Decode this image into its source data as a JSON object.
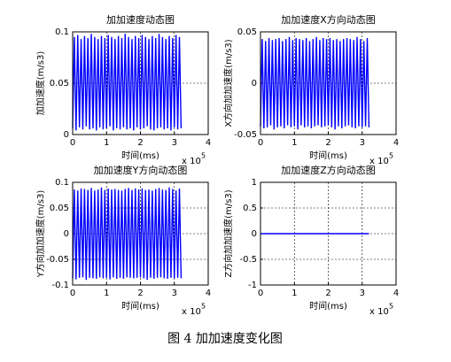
{
  "caption": "图 4 加加速度变化图",
  "chart_data": [
    {
      "type": "line",
      "title": "加加速度动态图",
      "xlabel": "时间(ms)",
      "ylabel": "加加速度(m/s3)",
      "x_scale_label": "x 10",
      "x_scale_exponent": "5",
      "xlim": [
        0,
        400000
      ],
      "xticks": [
        0,
        {
          "value": 100000,
          "label": "1"
        },
        {
          "value": 200000,
          "label": "2"
        },
        {
          "value": 300000,
          "label": "3"
        },
        {
          "value": 400000,
          "label": "4"
        }
      ],
      "ylim": [
        0,
        0.1
      ],
      "yticks": [
        0,
        0.05,
        0.1
      ],
      "grid": true,
      "x": [
        0,
        5000,
        10000,
        15000,
        20000,
        25000,
        30000,
        35000,
        40000,
        45000,
        50000,
        55000,
        60000,
        65000,
        70000,
        75000,
        80000,
        85000,
        90000,
        95000,
        100000,
        105000,
        110000,
        115000,
        120000,
        125000,
        130000,
        135000,
        140000,
        145000,
        150000,
        155000,
        160000,
        165000,
        170000,
        175000,
        180000,
        185000,
        190000,
        195000,
        200000,
        205000,
        210000,
        215000,
        220000,
        225000,
        230000,
        235000,
        240000,
        245000,
        250000,
        255000,
        260000,
        265000,
        270000,
        275000,
        280000,
        285000,
        290000,
        295000,
        300000,
        305000,
        310000,
        315000,
        320000
      ],
      "series": [
        {
          "color": "#0000ff",
          "values": [
            0.006,
            0.095,
            0.004,
            0.097,
            0.007,
            0.093,
            0.005,
            0.096,
            0.008,
            0.094,
            0.005,
            0.098,
            0.006,
            0.095,
            0.004,
            0.093,
            0.007,
            0.096,
            0.005,
            0.094,
            0.006,
            0.097,
            0.008,
            0.095,
            0.004,
            0.093,
            0.006,
            0.096,
            0.005,
            0.094,
            0.007,
            0.098,
            0.005,
            0.095,
            0.006,
            0.093,
            0.004,
            0.096,
            0.007,
            0.094,
            0.005,
            0.097,
            0.006,
            0.095,
            0.008,
            0.093,
            0.005,
            0.096,
            0.004,
            0.094,
            0.006,
            0.098,
            0.007,
            0.095,
            0.005,
            0.093,
            0.006,
            0.096,
            0.004,
            0.094,
            0.007,
            0.097,
            0.005,
            0.095,
            0.006
          ]
        }
      ]
    },
    {
      "type": "line",
      "title": "加加速度X方向动态图",
      "xlabel": "时间(ms)",
      "ylabel": "X方向加加速度(m/s3)",
      "x_scale_label": "x 10",
      "x_scale_exponent": "5",
      "xlim": [
        0,
        400000
      ],
      "xticks": [
        0,
        {
          "value": 100000,
          "label": "1"
        },
        {
          "value": 200000,
          "label": "2"
        },
        {
          "value": 300000,
          "label": "3"
        },
        {
          "value": 400000,
          "label": "4"
        }
      ],
      "ylim": [
        -0.05,
        0.05
      ],
      "yticks": [
        -0.05,
        0,
        0.05
      ],
      "grid": true,
      "x": [
        0,
        5000,
        10000,
        15000,
        20000,
        25000,
        30000,
        35000,
        40000,
        45000,
        50000,
        55000,
        60000,
        65000,
        70000,
        75000,
        80000,
        85000,
        90000,
        95000,
        100000,
        105000,
        110000,
        115000,
        120000,
        125000,
        130000,
        135000,
        140000,
        145000,
        150000,
        155000,
        160000,
        165000,
        170000,
        175000,
        180000,
        185000,
        190000,
        195000,
        200000,
        205000,
        210000,
        215000,
        220000,
        225000,
        230000,
        235000,
        240000,
        245000,
        250000,
        255000,
        260000,
        265000,
        270000,
        275000,
        280000,
        285000,
        290000,
        295000,
        300000,
        305000,
        310000,
        315000,
        320000
      ],
      "series": [
        {
          "color": "#0000ff",
          "values": [
            -0.042,
            0.043,
            -0.044,
            0.041,
            -0.043,
            0.044,
            -0.041,
            0.042,
            -0.045,
            0.043,
            -0.043,
            0.044,
            -0.042,
            0.041,
            -0.044,
            0.043,
            -0.041,
            0.045,
            -0.043,
            0.042,
            -0.042,
            0.044,
            -0.045,
            0.043,
            -0.041,
            0.042,
            -0.043,
            0.044,
            -0.042,
            0.041,
            -0.044,
            0.043,
            -0.042,
            0.045,
            -0.041,
            0.042,
            -0.043,
            0.044,
            -0.042,
            0.043,
            -0.041,
            0.044,
            -0.043,
            0.042,
            -0.045,
            0.043,
            -0.042,
            0.041,
            -0.044,
            0.043,
            -0.042,
            0.044,
            -0.041,
            0.043,
            -0.043,
            0.042,
            -0.044,
            0.045,
            -0.042,
            0.043,
            -0.043,
            0.041,
            -0.042,
            0.044,
            -0.043
          ]
        }
      ]
    },
    {
      "type": "line",
      "title": "加加速度Y方向动态图",
      "xlabel": "时间(ms)",
      "ylabel": "Y方向加加速度(m/s3)",
      "x_scale_label": "x 10",
      "x_scale_exponent": "5",
      "xlim": [
        0,
        400000
      ],
      "xticks": [
        0,
        {
          "value": 100000,
          "label": "1"
        },
        {
          "value": 200000,
          "label": "2"
        },
        {
          "value": 300000,
          "label": "3"
        },
        {
          "value": 400000,
          "label": "4"
        }
      ],
      "ylim": [
        -0.1,
        0.1
      ],
      "yticks": [
        -0.1,
        -0.05,
        0,
        0.05,
        0.1
      ],
      "grid": true,
      "x": [
        0,
        5000,
        10000,
        15000,
        20000,
        25000,
        30000,
        35000,
        40000,
        45000,
        50000,
        55000,
        60000,
        65000,
        70000,
        75000,
        80000,
        85000,
        90000,
        95000,
        100000,
        105000,
        110000,
        115000,
        120000,
        125000,
        130000,
        135000,
        140000,
        145000,
        150000,
        155000,
        160000,
        165000,
        170000,
        175000,
        180000,
        185000,
        190000,
        195000,
        200000,
        205000,
        210000,
        215000,
        220000,
        225000,
        230000,
        235000,
        240000,
        245000,
        250000,
        255000,
        260000,
        265000,
        270000,
        275000,
        280000,
        285000,
        290000,
        295000,
        300000,
        305000,
        310000,
        315000,
        320000
      ],
      "series": [
        {
          "color": "#0000ff",
          "values": [
            -0.087,
            0.086,
            -0.089,
            0.084,
            -0.086,
            0.088,
            -0.085,
            0.087,
            -0.09,
            0.085,
            -0.086,
            0.089,
            -0.087,
            0.084,
            -0.088,
            0.086,
            -0.085,
            0.09,
            -0.087,
            0.085,
            -0.086,
            0.088,
            -0.089,
            0.086,
            -0.085,
            0.087,
            -0.088,
            0.085,
            -0.086,
            0.084,
            -0.088,
            0.087,
            -0.085,
            0.089,
            -0.086,
            0.085,
            -0.087,
            0.088,
            -0.086,
            0.086,
            -0.085,
            0.088,
            -0.087,
            0.085,
            -0.09,
            0.086,
            -0.086,
            0.084,
            -0.088,
            0.087,
            -0.086,
            0.089,
            -0.085,
            0.086,
            -0.087,
            0.085,
            -0.088,
            0.09,
            -0.086,
            0.087,
            -0.087,
            0.084,
            -0.086,
            0.088,
            -0.087
          ]
        }
      ]
    },
    {
      "type": "line",
      "title": "加加速度Z方向动态图",
      "xlabel": "时间(ms)",
      "ylabel": "Z方向加加速度(m/s3)",
      "x_scale_label": "x 10",
      "x_scale_exponent": "5",
      "xlim": [
        0,
        400000
      ],
      "xticks": [
        0,
        {
          "value": 100000,
          "label": "1"
        },
        {
          "value": 200000,
          "label": "2"
        },
        {
          "value": 300000,
          "label": "3"
        },
        {
          "value": 400000,
          "label": "4"
        }
      ],
      "ylim": [
        -1,
        1
      ],
      "yticks": [
        -1,
        -0.5,
        0,
        0.5,
        1
      ],
      "grid": true,
      "x": [
        0,
        320000
      ],
      "series": [
        {
          "color": "#0000ff",
          "values": [
            0,
            0
          ]
        }
      ]
    }
  ]
}
